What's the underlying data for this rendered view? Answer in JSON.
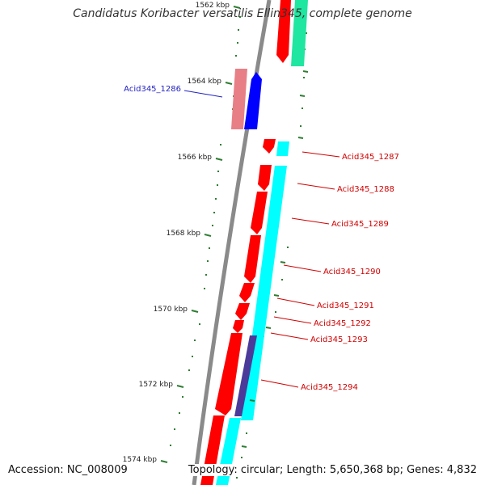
{
  "title": "Candidatus Koribacter versatilis Ellin345, complete genome",
  "accession": "Accession: NC_008009",
  "topology": "Topology: circular; Length: 5,650,368 bp; Genes: 4,832",
  "colors": {
    "backbone": "#8a8a8a",
    "forward_cds": "#ff0000",
    "reverse_cds": "#00ffff",
    "highlight_forward": "#e87f86",
    "highlight_reverse": "#0000ff",
    "top_gene": "#1fe6a0",
    "dark_overlap": "#4b3a9a",
    "tick": "#2e7d32",
    "label_forward": "#d00000",
    "label_highlight": "#1f1fbf"
  },
  "ticks": [
    {
      "label": "1562 kbp"
    },
    {
      "label": "1564 kbp"
    },
    {
      "label": "1566 kbp"
    },
    {
      "label": "1568 kbp"
    },
    {
      "label": "1570 kbp"
    },
    {
      "label": "1572 kbp"
    },
    {
      "label": "1574 kbp"
    }
  ],
  "genes": [
    {
      "label": "Acid345_1286",
      "category": "highlight"
    },
    {
      "label": "Acid345_1287",
      "category": "forward"
    },
    {
      "label": "Acid345_1288",
      "category": "forward"
    },
    {
      "label": "Acid345_1289",
      "category": "forward"
    },
    {
      "label": "Acid345_1290",
      "category": "forward"
    },
    {
      "label": "Acid345_1291",
      "category": "forward"
    },
    {
      "label": "Acid345_1292",
      "category": "forward"
    },
    {
      "label": "Acid345_1293",
      "category": "forward"
    },
    {
      "label": "Acid345_1294",
      "category": "forward"
    }
  ]
}
